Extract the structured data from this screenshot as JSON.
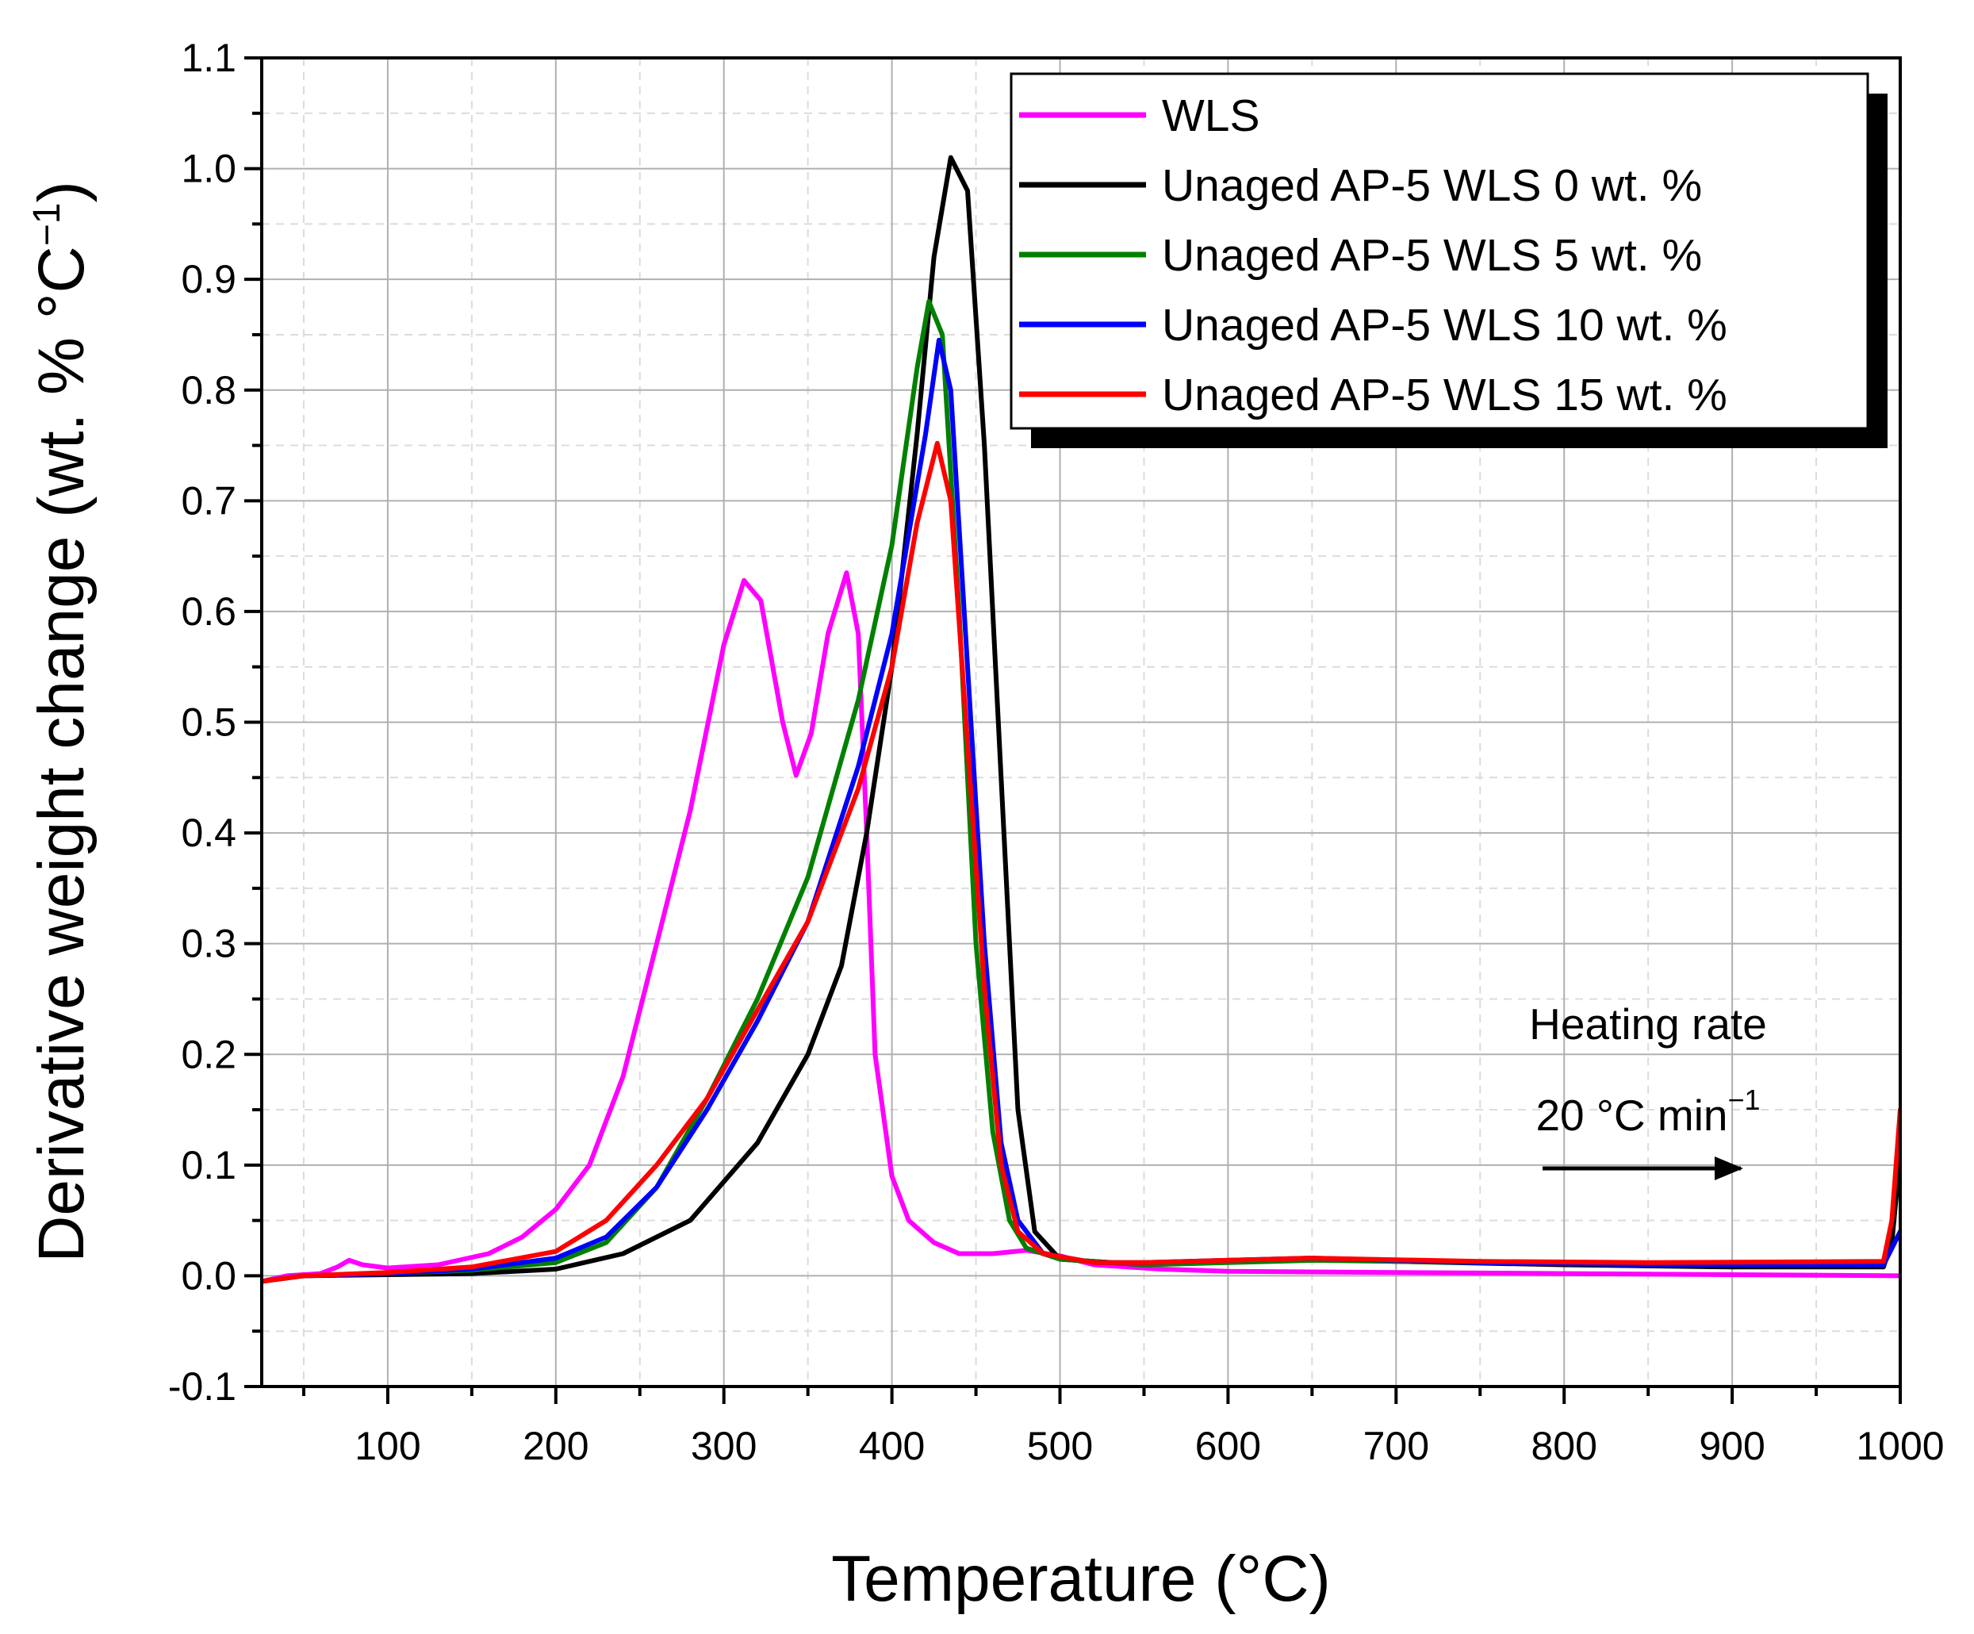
{
  "chart_data": {
    "type": "line",
    "xlabel": "Temperature (°C)",
    "ylabel": "Derivative weight change (wt. % °C",
    "ylabel_sup": "−1",
    "ylabel_close": ")",
    "xlim": [
      25,
      1000
    ],
    "ylim": [
      -0.1,
      1.1
    ],
    "grid": true,
    "legend_position": "top-right",
    "x_ticks": [
      {
        "value": 100,
        "label": "100"
      },
      {
        "value": 200,
        "label": "200"
      },
      {
        "value": 300,
        "label": "300"
      },
      {
        "value": 400,
        "label": "400"
      },
      {
        "value": 500,
        "label": "500"
      },
      {
        "value": 600,
        "label": "600"
      },
      {
        "value": 700,
        "label": "700"
      },
      {
        "value": 800,
        "label": "800"
      },
      {
        "value": 900,
        "label": "900"
      },
      {
        "value": 1000,
        "label": "1000"
      }
    ],
    "y_ticks": [
      {
        "value": -0.1,
        "label": "-0.1"
      },
      {
        "value": 0.0,
        "label": "0.0"
      },
      {
        "value": 0.1,
        "label": "0.1"
      },
      {
        "value": 0.2,
        "label": "0.2"
      },
      {
        "value": 0.3,
        "label": "0.3"
      },
      {
        "value": 0.4,
        "label": "0.4"
      },
      {
        "value": 0.5,
        "label": "0.5"
      },
      {
        "value": 0.6,
        "label": "0.6"
      },
      {
        "value": 0.7,
        "label": "0.7"
      },
      {
        "value": 0.8,
        "label": "0.8"
      },
      {
        "value": 0.9,
        "label": "0.9"
      },
      {
        "value": 1.0,
        "label": "1.0"
      },
      {
        "value": 1.1,
        "label": "1.1"
      }
    ],
    "series": [
      {
        "name": "WLS",
        "color": "#ff00ff",
        "points": [
          [
            25,
            -0.005
          ],
          [
            40,
            0
          ],
          [
            60,
            0.002
          ],
          [
            70,
            0.008
          ],
          [
            77,
            0.014
          ],
          [
            85,
            0.01
          ],
          [
            100,
            0.007
          ],
          [
            130,
            0.01
          ],
          [
            160,
            0.02
          ],
          [
            180,
            0.035
          ],
          [
            200,
            0.06
          ],
          [
            220,
            0.1
          ],
          [
            240,
            0.18
          ],
          [
            260,
            0.3
          ],
          [
            280,
            0.42
          ],
          [
            300,
            0.57
          ],
          [
            312,
            0.628
          ],
          [
            322,
            0.61
          ],
          [
            335,
            0.5
          ],
          [
            343,
            0.452
          ],
          [
            352,
            0.49
          ],
          [
            362,
            0.58
          ],
          [
            373,
            0.635
          ],
          [
            380,
            0.58
          ],
          [
            385,
            0.4
          ],
          [
            390,
            0.2
          ],
          [
            400,
            0.09
          ],
          [
            410,
            0.05
          ],
          [
            425,
            0.03
          ],
          [
            440,
            0.02
          ],
          [
            460,
            0.02
          ],
          [
            480,
            0.023
          ],
          [
            500,
            0.018
          ],
          [
            520,
            0.01
          ],
          [
            560,
            0.006
          ],
          [
            600,
            0.004
          ],
          [
            700,
            0.003
          ],
          [
            800,
            0.002
          ],
          [
            900,
            0.001
          ],
          [
            1000,
            0.0
          ]
        ]
      },
      {
        "name": "Unaged AP-5 WLS 0 wt. %",
        "color": "#000000",
        "points": [
          [
            25,
            -0.005
          ],
          [
            50,
            0
          ],
          [
            100,
            0.001
          ],
          [
            150,
            0.002
          ],
          [
            200,
            0.006
          ],
          [
            240,
            0.02
          ],
          [
            280,
            0.05
          ],
          [
            320,
            0.12
          ],
          [
            350,
            0.2
          ],
          [
            370,
            0.28
          ],
          [
            385,
            0.4
          ],
          [
            400,
            0.55
          ],
          [
            415,
            0.76
          ],
          [
            425,
            0.92
          ],
          [
            435,
            1.01
          ],
          [
            445,
            0.98
          ],
          [
            455,
            0.75
          ],
          [
            465,
            0.45
          ],
          [
            475,
            0.15
          ],
          [
            485,
            0.04
          ],
          [
            500,
            0.015
          ],
          [
            550,
            0.01
          ],
          [
            650,
            0.015
          ],
          [
            700,
            0.013
          ],
          [
            800,
            0.01
          ],
          [
            900,
            0.008
          ],
          [
            990,
            0.008
          ],
          [
            995,
            0.03
          ],
          [
            1000,
            0.11
          ]
        ]
      },
      {
        "name": "Unaged AP-5 WLS 5 wt. %",
        "color": "#008000",
        "points": [
          [
            25,
            -0.005
          ],
          [
            50,
            0
          ],
          [
            100,
            0.002
          ],
          [
            150,
            0.005
          ],
          [
            200,
            0.012
          ],
          [
            230,
            0.03
          ],
          [
            260,
            0.08
          ],
          [
            290,
            0.16
          ],
          [
            320,
            0.25
          ],
          [
            350,
            0.36
          ],
          [
            380,
            0.52
          ],
          [
            400,
            0.66
          ],
          [
            415,
            0.82
          ],
          [
            422,
            0.88
          ],
          [
            430,
            0.85
          ],
          [
            440,
            0.6
          ],
          [
            450,
            0.3
          ],
          [
            460,
            0.13
          ],
          [
            470,
            0.05
          ],
          [
            480,
            0.025
          ],
          [
            500,
            0.015
          ],
          [
            550,
            0.01
          ],
          [
            650,
            0.014
          ],
          [
            750,
            0.012
          ],
          [
            850,
            0.01
          ],
          [
            990,
            0.01
          ],
          [
            1000,
            0.04
          ]
        ]
      },
      {
        "name": "Unaged AP-5 WLS 10 wt. %",
        "color": "#0000ff",
        "points": [
          [
            25,
            -0.005
          ],
          [
            50,
            0
          ],
          [
            100,
            0.002
          ],
          [
            150,
            0.006
          ],
          [
            200,
            0.016
          ],
          [
            230,
            0.035
          ],
          [
            260,
            0.08
          ],
          [
            290,
            0.15
          ],
          [
            320,
            0.23
          ],
          [
            350,
            0.32
          ],
          [
            380,
            0.46
          ],
          [
            400,
            0.58
          ],
          [
            420,
            0.76
          ],
          [
            428,
            0.845
          ],
          [
            435,
            0.8
          ],
          [
            445,
            0.55
          ],
          [
            455,
            0.3
          ],
          [
            465,
            0.12
          ],
          [
            475,
            0.05
          ],
          [
            490,
            0.02
          ],
          [
            520,
            0.012
          ],
          [
            550,
            0.012
          ],
          [
            650,
            0.016
          ],
          [
            750,
            0.012
          ],
          [
            850,
            0.01
          ],
          [
            990,
            0.01
          ],
          [
            1000,
            0.04
          ]
        ]
      },
      {
        "name": "Unaged AP-5 WLS 15 wt. %",
        "color": "#ff0000",
        "points": [
          [
            25,
            -0.005
          ],
          [
            50,
            0
          ],
          [
            100,
            0.003
          ],
          [
            150,
            0.008
          ],
          [
            200,
            0.022
          ],
          [
            230,
            0.05
          ],
          [
            260,
            0.1
          ],
          [
            290,
            0.16
          ],
          [
            320,
            0.24
          ],
          [
            350,
            0.32
          ],
          [
            380,
            0.44
          ],
          [
            400,
            0.55
          ],
          [
            415,
            0.68
          ],
          [
            427,
            0.752
          ],
          [
            435,
            0.7
          ],
          [
            445,
            0.48
          ],
          [
            455,
            0.26
          ],
          [
            465,
            0.1
          ],
          [
            475,
            0.04
          ],
          [
            490,
            0.02
          ],
          [
            520,
            0.012
          ],
          [
            550,
            0.012
          ],
          [
            650,
            0.016
          ],
          [
            750,
            0.013
          ],
          [
            850,
            0.012
          ],
          [
            990,
            0.013
          ],
          [
            995,
            0.05
          ],
          [
            1000,
            0.15
          ]
        ]
      }
    ],
    "annotation": {
      "line1": "Heating rate",
      "line2": "20 °C min",
      "line2_sup": "−1",
      "arrow": "right"
    }
  }
}
